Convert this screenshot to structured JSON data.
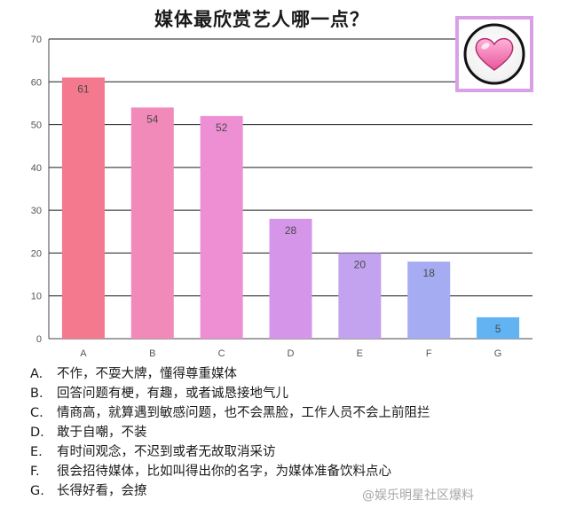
{
  "chart_data": {
    "type": "bar",
    "title": "媒体最欣赏艺人哪一点？",
    "categories": [
      "A",
      "B",
      "C",
      "D",
      "E",
      "F",
      "G"
    ],
    "values": [
      61,
      54,
      52,
      28,
      20,
      18,
      5
    ],
    "ylim": [
      0,
      70
    ],
    "yticks": [
      0,
      10,
      20,
      30,
      40,
      50,
      60,
      70
    ],
    "grid": true,
    "xlabel": "",
    "ylabel": "",
    "colors": [
      "#f4798f",
      "#f28ab9",
      "#ee8fd4",
      "#d596e9",
      "#c3a2ef",
      "#a6acf2",
      "#62b3f2"
    ]
  },
  "legend": [
    {
      "key": "A.",
      "text": "不作，不耍大牌，懂得尊重媒体"
    },
    {
      "key": "B.",
      "text": "回答问题有梗，有趣，或者诚恳接地气儿"
    },
    {
      "key": "C.",
      "text": "情商高，就算遇到敏感问题，也不会黑脸，工作人员不会上前阻拦"
    },
    {
      "key": "D.",
      "text": "敢于自嘲，不装"
    },
    {
      "key": "E.",
      "text": "有时间观念，不迟到或者无故取消采访"
    },
    {
      "key": "F.",
      "text": "很会招待媒体，比如叫得出你的名字，为媒体准备饮料点心"
    },
    {
      "key": "G.",
      "text": "长得好看，会撩"
    }
  ],
  "badge_icon": "heart-icon",
  "watermark": "@娱乐明星社区爆料"
}
